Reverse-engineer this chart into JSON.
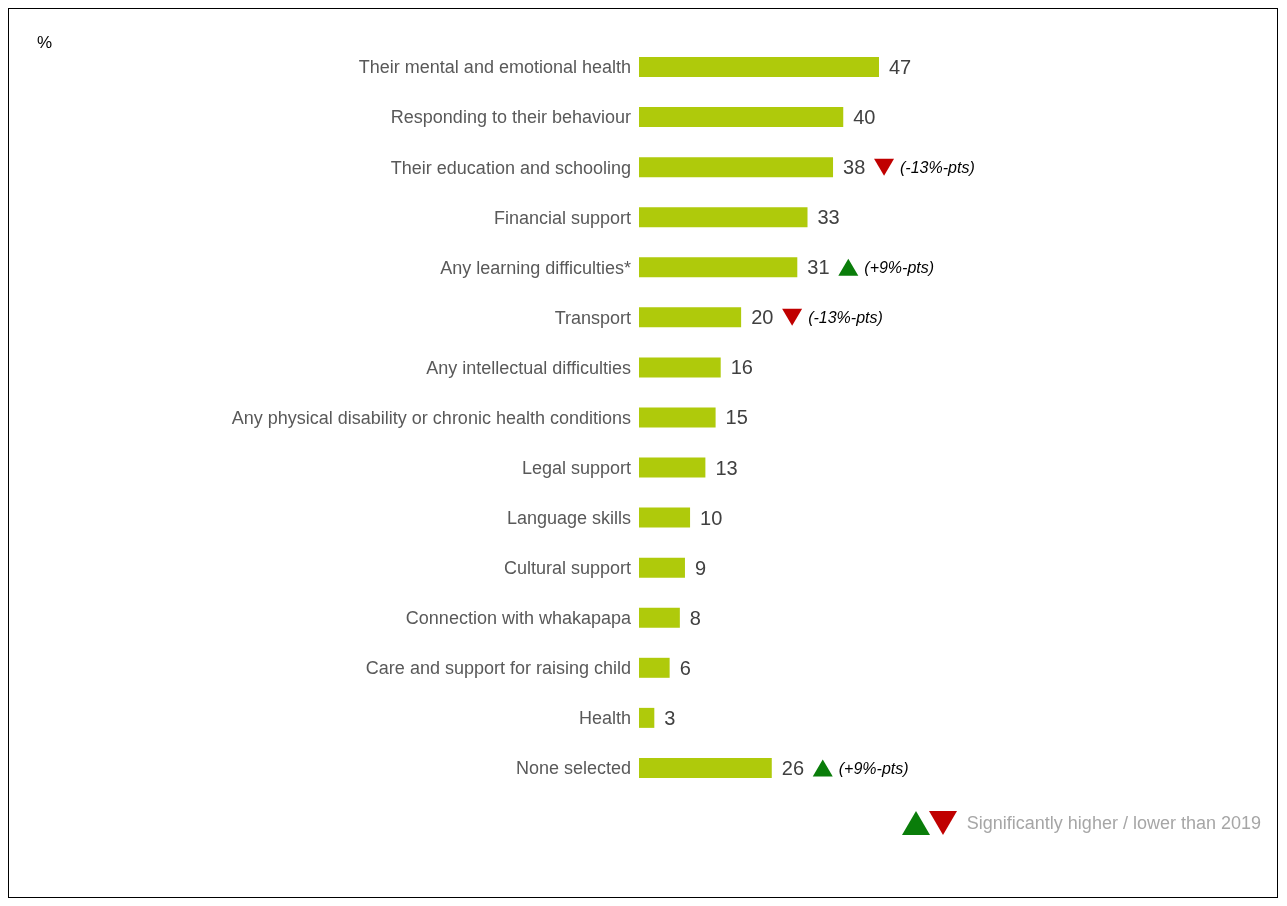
{
  "chart_data": {
    "type": "bar",
    "orientation": "horizontal",
    "data_labels": true,
    "categories": [
      "Their mental and emotional health",
      "Responding to their behaviour",
      "Their education and schooling",
      "Financial support",
      "Any learning difficulties*",
      "Transport",
      "Any intellectual difficulties",
      "Any physical disability or chronic health conditions",
      "Legal support",
      "Language skills",
      "Cultural support",
      "Connection with whakapapa",
      "Care and support for raising child",
      "Health",
      "None selected"
    ],
    "values": [
      47,
      40,
      38,
      33,
      31,
      20,
      16,
      15,
      13,
      10,
      9,
      8,
      6,
      3,
      26
    ],
    "color": "#afca0b",
    "annotations": [
      "%",
      "(-13%-pts)",
      "(+9%-pts)",
      "(-13%-pts)",
      "(+9%-pts)",
      "Significantly higher / lower than 2019"
    ]
  }
}
